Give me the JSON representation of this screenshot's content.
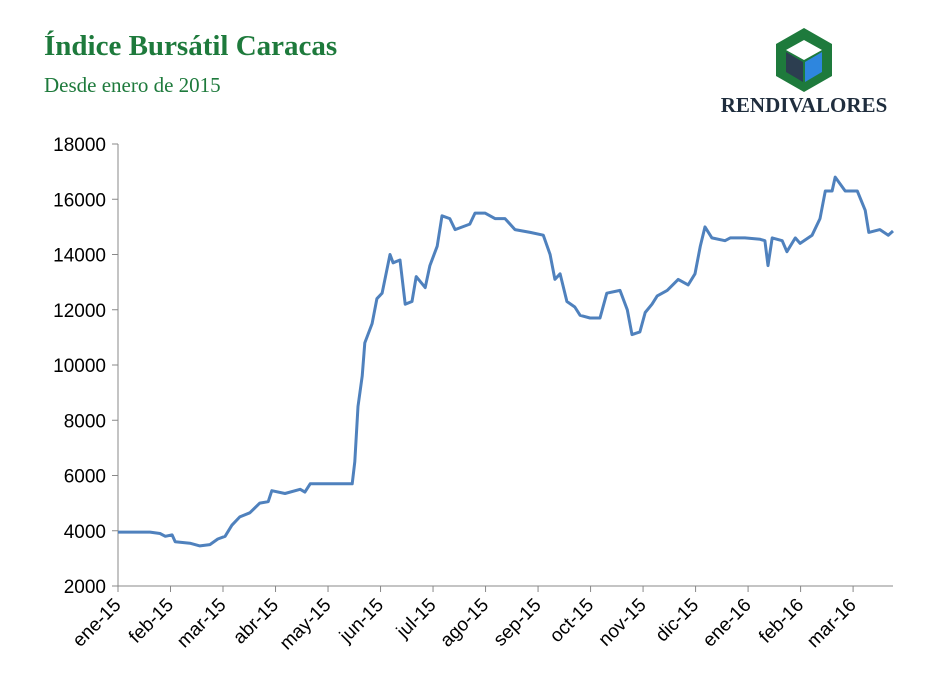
{
  "brand": "RENDIVALORES",
  "chart_data": {
    "type": "line",
    "title": "Índice Bursátil Caracas",
    "subtitle": "Desde enero de 2015",
    "color": "#4f81bd",
    "x": [
      0,
      0.61,
      0.8,
      0.9,
      1.03,
      1.09,
      1.37,
      1.56,
      1.75,
      1.9,
      2.04,
      2.17,
      2.32,
      2.51,
      2.7,
      2.86,
      2.93,
      3.18,
      3.47,
      3.56,
      3.66,
      4.04,
      4.32,
      4.46,
      4.51,
      4.57,
      4.65,
      4.7,
      4.84,
      4.93,
      5.03,
      5.18,
      5.24,
      5.37,
      5.47,
      5.6,
      5.68,
      5.85,
      5.94,
      6.08,
      6.17,
      6.32,
      6.42,
      6.7,
      6.8,
      6.99,
      7.18,
      7.37,
      7.56,
      7.85,
      8.1,
      8.23,
      8.32,
      8.42,
      8.55,
      8.7,
      8.8,
      8.99,
      9.18,
      9.31,
      9.56,
      9.7,
      9.79,
      9.94,
      10.04,
      10.17,
      10.27,
      10.46,
      10.67,
      10.86,
      10.99,
      11.09,
      11.18,
      11.31,
      11.56,
      11.66,
      11.94,
      12.23,
      12.32,
      12.38,
      12.46,
      12.65,
      12.74,
      12.9,
      12.99,
      13.22,
      13.37,
      13.47,
      13.6,
      13.66,
      13.85,
      14.08,
      14.23,
      14.3,
      14.51,
      14.67,
      14.76
    ],
    "values": [
      3950,
      3950,
      3900,
      3800,
      3850,
      3600,
      3550,
      3450,
      3500,
      3700,
      3800,
      4200,
      4500,
      4650,
      5000,
      5050,
      5450,
      5350,
      5500,
      5400,
      5700,
      5700,
      5700,
      5700,
      6500,
      8500,
      9600,
      10800,
      11500,
      12400,
      12600,
      14000,
      13700,
      13800,
      12200,
      12300,
      13200,
      12800,
      13600,
      14300,
      15400,
      15300,
      14900,
      15100,
      15500,
      15500,
      15300,
      15300,
      14900,
      14800,
      14700,
      14000,
      13100,
      13300,
      12300,
      12100,
      11800,
      11700,
      11700,
      12600,
      12700,
      12000,
      11100,
      11200,
      11900,
      12200,
      12500,
      12700,
      13100,
      12900,
      13300,
      14300,
      15000,
      14600,
      14500,
      14600,
      14600,
      14550,
      14500,
      13600,
      14600,
      14500,
      14100,
      14600,
      14400,
      14700,
      15300,
      16300,
      16300,
      16800,
      16300,
      16300,
      15600,
      14800,
      14900,
      14700,
      14850
    ],
    "xlim": [
      0,
      14.76
    ],
    "xticks": [
      {
        "value": 0,
        "label": "ene-15"
      },
      {
        "value": 1,
        "label": "feb-15"
      },
      {
        "value": 2,
        "label": "mar-15"
      },
      {
        "value": 3,
        "label": "abr-15"
      },
      {
        "value": 4,
        "label": "may-15"
      },
      {
        "value": 5,
        "label": "jun-15"
      },
      {
        "value": 6,
        "label": "jul-15"
      },
      {
        "value": 7,
        "label": "ago-15"
      },
      {
        "value": 8,
        "label": "sep-15"
      },
      {
        "value": 9,
        "label": "oct-15"
      },
      {
        "value": 10,
        "label": "nov-15"
      },
      {
        "value": 11,
        "label": "dic-15"
      },
      {
        "value": 12,
        "label": "ene-16"
      },
      {
        "value": 13,
        "label": "feb-16"
      },
      {
        "value": 14,
        "label": "mar-16"
      }
    ],
    "ylim": [
      2000,
      18000
    ],
    "yticks": [
      2000,
      4000,
      6000,
      8000,
      10000,
      12000,
      14000,
      16000,
      18000
    ],
    "grid": false
  }
}
